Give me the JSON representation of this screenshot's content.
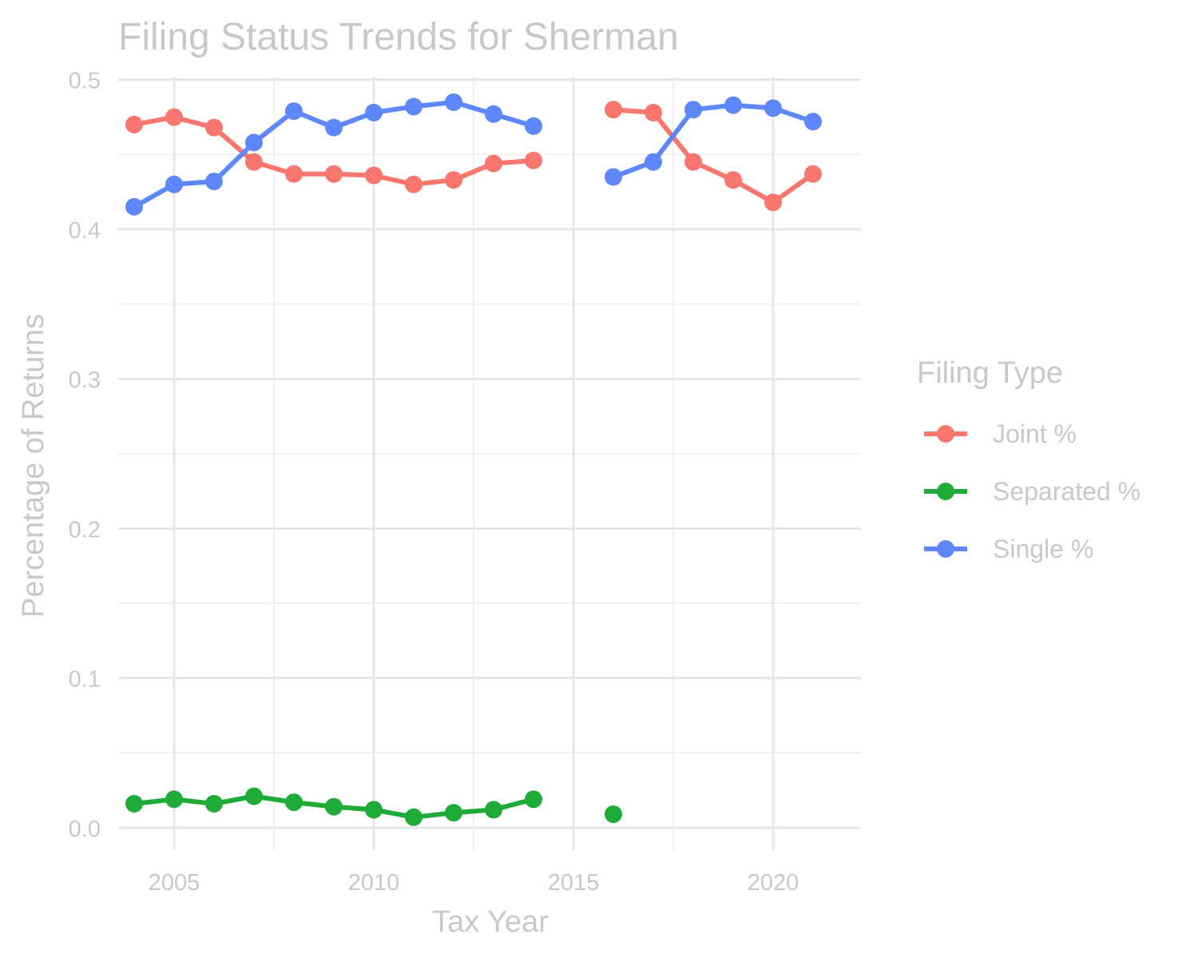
{
  "chart_data": {
    "type": "line",
    "title": "Filing Status Trends for Sherman",
    "xlabel": "Tax Year",
    "ylabel": "Percentage of Returns",
    "xlim": [
      2003.6,
      2022.2
    ],
    "ylim": [
      -0.015,
      0.502
    ],
    "x_ticks": [
      2005,
      2010,
      2015,
      2020
    ],
    "x_tick_labels": [
      "2005",
      "2010",
      "2015",
      "2020"
    ],
    "x_minor_ticks": [
      2007.5,
      2012.5,
      2017.5
    ],
    "y_ticks": [
      0.0,
      0.1,
      0.2,
      0.3,
      0.4,
      0.5
    ],
    "y_tick_labels": [
      "0.0",
      "0.1",
      "0.2",
      "0.3",
      "0.4",
      "0.5"
    ],
    "y_minor_ticks": [
      0.05,
      0.15,
      0.25,
      0.35,
      0.45
    ],
    "grid": true,
    "legend": {
      "title": "Filing Type",
      "placement": "right"
    },
    "x": [
      2004,
      2005,
      2006,
      2007,
      2008,
      2009,
      2010,
      2011,
      2012,
      2013,
      2014,
      2016,
      2017,
      2018,
      2019,
      2020,
      2021
    ],
    "series": [
      {
        "name": "Joint %",
        "color": "#f8766d",
        "values": [
          0.47,
          0.475,
          0.468,
          0.445,
          0.437,
          0.437,
          0.436,
          0.43,
          0.433,
          0.444,
          0.446,
          0.48,
          0.478,
          0.445,
          0.433,
          0.418,
          0.437
        ]
      },
      {
        "name": "Separated %",
        "color": "#1eab37",
        "values": [
          0.016,
          0.019,
          0.016,
          0.021,
          0.017,
          0.014,
          0.012,
          0.007,
          0.01,
          0.012,
          0.019,
          0.009,
          null,
          null,
          null,
          null,
          null
        ]
      },
      {
        "name": "Single %",
        "color": "#5e87fb",
        "values": [
          0.415,
          0.43,
          0.432,
          0.458,
          0.479,
          0.468,
          0.478,
          0.482,
          0.485,
          0.477,
          0.469,
          0.435,
          0.445,
          0.48,
          0.483,
          0.481,
          0.472
        ]
      }
    ]
  }
}
